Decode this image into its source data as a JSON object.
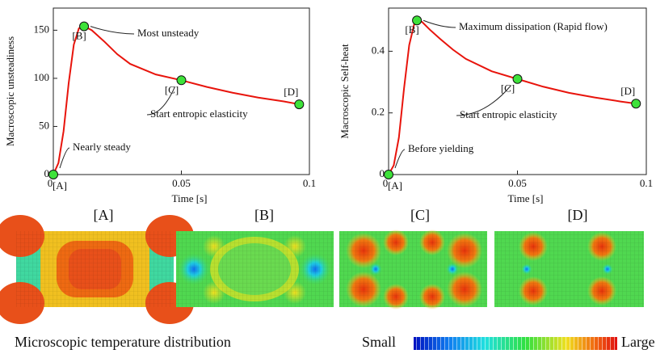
{
  "chart_data": [
    {
      "type": "line",
      "xlabel": "Time [s]",
      "ylabel": "Macroscopic unsteadiness",
      "x": [
        0,
        0.002,
        0.004,
        0.006,
        0.008,
        0.01,
        0.012,
        0.015,
        0.02,
        0.025,
        0.03,
        0.04,
        0.05,
        0.06,
        0.07,
        0.08,
        0.09,
        0.096
      ],
      "values": [
        0,
        12,
        45,
        95,
        135,
        152,
        154,
        150,
        138,
        125,
        115,
        104,
        98,
        91,
        85,
        80,
        76,
        73
      ],
      "color": "#e8140c",
      "markers": {
        "x": [
          0,
          0.012,
          0.05,
          0.096
        ],
        "values": [
          0,
          154,
          98,
          73
        ],
        "labels": [
          "[A]",
          "[B]",
          "[C]",
          "[D]"
        ],
        "color": "#3ee23a"
      },
      "annotations": [
        "Nearly steady",
        "Most unsteady",
        "Start entropic elasticity"
      ],
      "xlim": [
        0,
        0.1
      ],
      "xticks": [
        0,
        0.05,
        0.1
      ],
      "ylim": [
        0,
        173
      ],
      "yticks": [
        0,
        50,
        100,
        150
      ]
    },
    {
      "type": "line",
      "xlabel": "Time [s]",
      "ylabel": "Macroscopic Self-heat",
      "x": [
        0,
        0.002,
        0.004,
        0.006,
        0.008,
        0.01,
        0.011,
        0.013,
        0.016,
        0.02,
        0.025,
        0.03,
        0.04,
        0.05,
        0.06,
        0.07,
        0.08,
        0.09,
        0.096
      ],
      "values": [
        0,
        0.03,
        0.12,
        0.28,
        0.42,
        0.49,
        0.5,
        0.495,
        0.47,
        0.44,
        0.405,
        0.375,
        0.335,
        0.31,
        0.285,
        0.265,
        0.25,
        0.237,
        0.23
      ],
      "color": "#e8140c",
      "markers": {
        "x": [
          0,
          0.011,
          0.05,
          0.096
        ],
        "values": [
          0,
          0.5,
          0.31,
          0.23
        ],
        "labels": [
          "[A]",
          "[B]",
          "[C]",
          "[D]"
        ],
        "color": "#3ee23a"
      },
      "annotations": [
        "Before yielding",
        "Maximum dissipation (Rapid flow)",
        "Start entropic elasticity"
      ],
      "xlim": [
        0,
        0.1
      ],
      "xticks": [
        0,
        0.05,
        0.1
      ],
      "ylim": [
        0,
        0.54
      ],
      "yticks": [
        0,
        0.2,
        0.4
      ]
    }
  ],
  "figure": {
    "panels": [
      "[A]",
      "[B]",
      "[C]",
      "[D]"
    ],
    "caption": "Microscopic temperature distribution",
    "colorbar": {
      "low": "Small",
      "high": "Large"
    }
  }
}
